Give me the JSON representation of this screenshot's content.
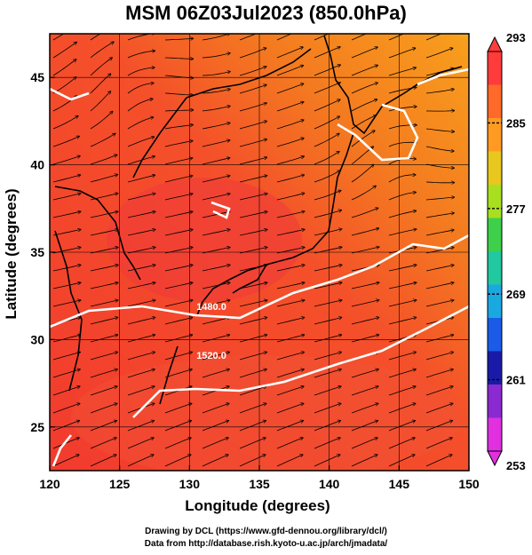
{
  "title": "MSM 06Z03Jul2023 (850.0hPa)",
  "map": {
    "lon_range": [
      120,
      150
    ],
    "lat_range": [
      22.5,
      47.5
    ],
    "x_ticks": [
      120,
      125,
      130,
      135,
      140,
      145,
      150
    ],
    "y_ticks": [
      25,
      30,
      35,
      40,
      45
    ],
    "xlabel": "Longitude (degrees)",
    "ylabel": "Latitude  (degrees)",
    "contour_labels": [
      {
        "text": "1480.0",
        "lon": 130.5,
        "lat": 31.7
      },
      {
        "text": "1520.0",
        "lon": 130.5,
        "lat": 28.9
      }
    ]
  },
  "colorbar": {
    "tick_labels": [
      "293",
      "285",
      "277",
      "269",
      "261",
      "253"
    ],
    "colors": [
      "#ff3b3b",
      "#ff6a2a",
      "#ff9a22",
      "#e8c81e",
      "#a8e020",
      "#3ed04a",
      "#22c8a0",
      "#1aa8e0",
      "#1a5ce8",
      "#1a1aa8",
      "#8a2ad0",
      "#e030e0"
    ]
  },
  "credits": {
    "line1": "Drawing by DCL (https://www.gfd-dennou.org/library/dcl/)",
    "line2": "Data from http://database.rish.kyoto-u.ac.jp/arch/jmadata/"
  }
}
